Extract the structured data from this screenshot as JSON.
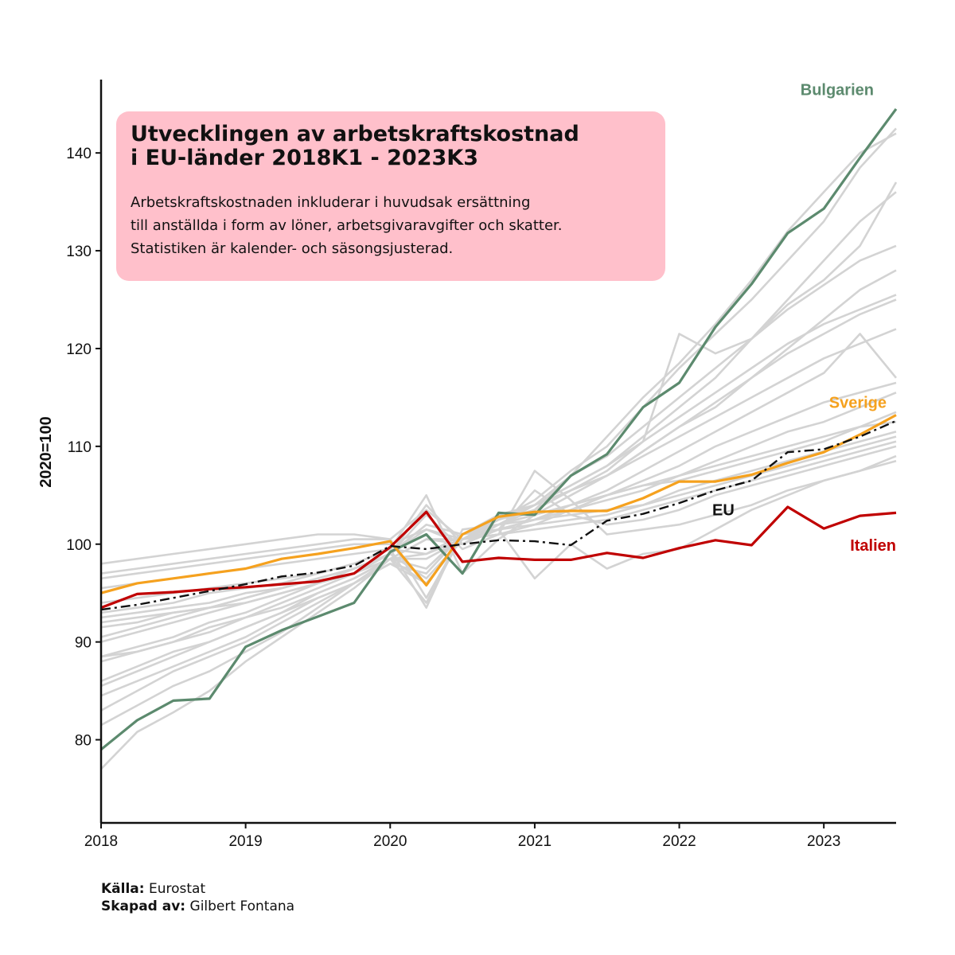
{
  "title": "Utvecklingen av arbetskraftskostnad\ni EU-länder 2018K1 - 2023K3",
  "subtitle": "Arbetskraftskostnaden inkluderar i huvudsak ersättning\ntill anställda i form av löner, arbetsgivaravgifter och skatter.\nStatistiken är kalender- och säsongsjusterad.",
  "caption": {
    "source_label": "Källa:",
    "source_value": "Eurostat",
    "author_label": "Skapad av:",
    "author_value": "Gilbert Fontana"
  },
  "colors": {
    "background_series": "#d3d3d3",
    "Bulgarien": "#5c8a6e",
    "Sverige": "#f5a11e",
    "Italien": "#c00000",
    "EU": "#111111",
    "title_box": "#ffc0cb"
  },
  "chart_data": {
    "type": "line",
    "xlabel": "",
    "ylabel": "2020=100",
    "xlim": [
      2018.0,
      2023.5
    ],
    "ylim": [
      71.5,
      147.5
    ],
    "x_ticks": [
      2018,
      2019,
      2020,
      2021,
      2022,
      2023
    ],
    "y_ticks": [
      80,
      90,
      100,
      110,
      120,
      130,
      140
    ],
    "grid": false,
    "legend": "direct labels at line ends",
    "x": [
      "2018K1",
      "2018K2",
      "2018K3",
      "2018K4",
      "2019K1",
      "2019K2",
      "2019K3",
      "2019K4",
      "2020K1",
      "2020K2",
      "2020K3",
      "2020K4",
      "2021K1",
      "2021K2",
      "2021K3",
      "2021K4",
      "2022K1",
      "2022K2",
      "2022K3",
      "2022K4",
      "2023K1",
      "2023K2",
      "2023K3"
    ],
    "highlighted_series": [
      {
        "name": "Bulgarien",
        "style": "solid",
        "values": [
          79.0,
          82.0,
          84.0,
          84.2,
          89.5,
          91.2,
          92.6,
          94.0,
          99.2,
          101.0,
          97.0,
          103.2,
          103.0,
          107.0,
          109.2,
          114.0,
          116.5,
          122.2,
          126.6,
          131.8,
          134.3,
          139.5,
          144.5
        ]
      },
      {
        "name": "Sverige",
        "style": "solid",
        "values": [
          95.0,
          96.0,
          96.5,
          97.0,
          97.5,
          98.5,
          99.0,
          99.6,
          100.3,
          95.8,
          101.0,
          102.8,
          103.3,
          103.4,
          103.4,
          104.7,
          106.4,
          106.4,
          107.1,
          108.3,
          109.4,
          111.2,
          113.2
        ]
      },
      {
        "name": "Italien",
        "style": "solid",
        "values": [
          93.5,
          94.9,
          95.1,
          95.4,
          95.6,
          95.9,
          96.2,
          97.0,
          99.7,
          103.3,
          98.2,
          98.6,
          98.4,
          98.4,
          99.1,
          98.6,
          99.6,
          100.4,
          99.9,
          103.8,
          101.6,
          102.9,
          103.2
        ]
      },
      {
        "name": "EU",
        "style": "dash-dot",
        "values": [
          93.3,
          93.8,
          94.5,
          95.2,
          95.9,
          96.7,
          97.1,
          97.8,
          99.8,
          99.5,
          100.0,
          100.4,
          100.3,
          99.9,
          102.4,
          103.1,
          104.2,
          105.5,
          106.5,
          109.4,
          109.7,
          111.0,
          112.6
        ]
      }
    ],
    "background_series": [
      {
        "values": [
          77.0,
          80.8,
          82.8,
          85.0,
          88.0,
          90.5,
          93.0,
          95.5,
          98.5,
          100.5,
          100.0,
          102.0,
          103.5,
          107.0,
          111.0,
          115.0,
          118.5,
          122.5,
          127.0,
          132.0,
          136.0,
          140.0,
          142.0
        ]
      },
      {
        "values": [
          81.5,
          83.5,
          85.5,
          87.0,
          89.0,
          91.0,
          93.5,
          96.0,
          98.5,
          96.0,
          100.5,
          102.5,
          104.5,
          107.5,
          110.0,
          114.0,
          118.0,
          121.5,
          125.0,
          129.0,
          133.0,
          138.5,
          142.5
        ]
      },
      {
        "values": [
          83.0,
          85.0,
          87.0,
          88.5,
          90.0,
          92.0,
          94.0,
          96.0,
          98.0,
          97.0,
          101.0,
          103.0,
          104.0,
          107.0,
          109.0,
          112.0,
          115.0,
          118.0,
          121.0,
          124.5,
          127.0,
          130.5,
          137.0
        ]
      },
      {
        "values": [
          84.5,
          86.0,
          87.5,
          89.0,
          90.5,
          92.5,
          94.5,
          96.0,
          98.0,
          96.0,
          100.5,
          102.0,
          104.0,
          106.0,
          108.0,
          111.0,
          114.0,
          117.0,
          121.0,
          125.0,
          129.0,
          133.0,
          136.0
        ]
      },
      {
        "values": [
          86.0,
          87.5,
          89.0,
          90.0,
          91.5,
          93.0,
          95.0,
          96.5,
          98.5,
          97.5,
          101.0,
          102.5,
          103.5,
          105.5,
          107.5,
          110.5,
          121.5,
          119.5,
          121.0,
          124.0,
          126.5,
          129.0,
          130.5
        ]
      },
      {
        "values": [
          88.0,
          89.0,
          90.0,
          91.0,
          92.5,
          93.5,
          95.0,
          96.5,
          98.5,
          94.0,
          101.0,
          102.0,
          103.0,
          105.0,
          107.0,
          109.5,
          112.0,
          114.5,
          117.0,
          120.0,
          123.0,
          126.0,
          128.0
        ]
      },
      {
        "values": [
          88.5,
          89.5,
          90.5,
          92.0,
          93.0,
          94.5,
          96.0,
          97.0,
          98.5,
          98.5,
          100.5,
          102.0,
          103.5,
          105.5,
          107.0,
          109.5,
          112.0,
          114.0,
          117.0,
          119.5,
          121.5,
          123.5,
          125.0
        ]
      },
      {
        "values": [
          90.0,
          91.0,
          92.0,
          93.0,
          94.0,
          95.0,
          96.0,
          97.5,
          99.0,
          101.5,
          100.5,
          101.5,
          102.5,
          104.0,
          105.5,
          107.5,
          109.5,
          111.5,
          113.5,
          115.5,
          117.5,
          121.5,
          117.0
        ]
      },
      {
        "values": [
          91.5,
          92.0,
          93.0,
          93.5,
          94.5,
          95.5,
          96.5,
          97.5,
          99.0,
          103.0,
          99.5,
          101.0,
          102.0,
          103.5,
          105.0,
          106.5,
          108.0,
          110.0,
          111.5,
          113.0,
          114.5,
          115.5,
          116.5
        ]
      },
      {
        "values": [
          92.5,
          93.0,
          93.5,
          94.0,
          95.0,
          95.5,
          96.5,
          97.5,
          99.0,
          104.0,
          100.0,
          101.5,
          102.5,
          103.5,
          104.5,
          105.5,
          107.0,
          108.5,
          110.0,
          111.5,
          112.5,
          114.0,
          115.5
        ]
      },
      {
        "values": [
          93.0,
          93.5,
          94.0,
          95.0,
          95.5,
          96.0,
          97.0,
          98.0,
          99.5,
          105.0,
          97.0,
          100.5,
          103.0,
          104.0,
          105.0,
          106.0,
          106.5,
          107.5,
          108.5,
          109.5,
          110.5,
          112.0,
          113.5
        ]
      },
      {
        "values": [
          94.0,
          94.5,
          95.0,
          95.5,
          96.0,
          96.5,
          97.0,
          98.0,
          99.5,
          93.5,
          101.5,
          102.0,
          102.5,
          103.0,
          103.5,
          104.0,
          105.5,
          106.5,
          107.5,
          108.5,
          109.5,
          110.5,
          111.5
        ]
      },
      {
        "values": [
          95.5,
          96.0,
          96.5,
          97.0,
          97.5,
          98.0,
          98.5,
          99.0,
          99.5,
          99.0,
          100.5,
          101.5,
          102.0,
          102.5,
          103.0,
          104.0,
          105.0,
          106.0,
          107.0,
          108.0,
          109.0,
          110.0,
          111.0
        ]
      },
      {
        "values": [
          96.5,
          97.0,
          97.5,
          98.0,
          98.5,
          99.0,
          99.5,
          100.0,
          100.0,
          101.5,
          100.0,
          101.5,
          105.5,
          103.0,
          102.0,
          102.5,
          103.5,
          105.0,
          106.0,
          107.0,
          108.0,
          109.0,
          110.0
        ]
      },
      {
        "values": [
          97.0,
          97.5,
          98.0,
          98.5,
          99.0,
          99.5,
          100.0,
          100.5,
          100.5,
          103.5,
          100.5,
          101.0,
          107.5,
          104.5,
          101.0,
          101.5,
          102.0,
          103.0,
          104.0,
          105.5,
          106.5,
          107.5,
          109.0
        ]
      },
      {
        "values": [
          98.0,
          98.5,
          99.0,
          99.5,
          100.0,
          100.5,
          101.0,
          101.0,
          100.5,
          94.5,
          101.0,
          101.5,
          96.5,
          100.0,
          97.5,
          99.0,
          99.5,
          101.5,
          103.5,
          105.0,
          106.5,
          107.5,
          108.5
        ]
      },
      {
        "values": [
          88.5,
          89.0,
          90.0,
          91.5,
          92.5,
          94.0,
          95.5,
          97.0,
          99.0,
          96.5,
          100.5,
          102.5,
          104.0,
          106.0,
          108.0,
          110.5,
          113.0,
          115.5,
          118.0,
          120.5,
          122.5,
          124.0,
          125.5
        ]
      },
      {
        "values": [
          85.5,
          87.0,
          88.5,
          90.0,
          91.5,
          93.0,
          94.5,
          96.0,
          98.5,
          99.0,
          101.0,
          102.5,
          104.0,
          105.5,
          107.0,
          109.0,
          111.0,
          113.0,
          115.0,
          117.0,
          119.0,
          120.5,
          122.0
        ]
      },
      {
        "values": [
          90.5,
          91.5,
          92.5,
          93.5,
          94.5,
          95.5,
          96.5,
          97.5,
          99.0,
          102.0,
          101.0,
          102.0,
          103.0,
          104.0,
          105.0,
          106.0,
          107.0,
          108.0,
          109.0,
          110.0,
          111.0,
          112.0,
          112.5
        ]
      },
      {
        "values": [
          92.0,
          92.5,
          93.0,
          93.5,
          94.0,
          95.0,
          96.0,
          97.0,
          98.5,
          100.5,
          100.5,
          101.0,
          101.5,
          102.0,
          102.5,
          103.5,
          104.5,
          105.5,
          106.5,
          107.5,
          108.5,
          109.5,
          110.5
        ]
      }
    ]
  }
}
